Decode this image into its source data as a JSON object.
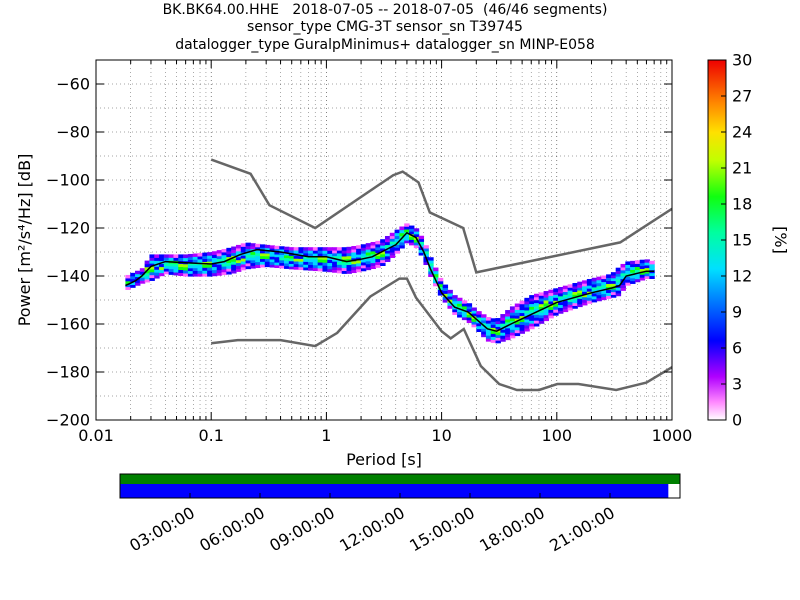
{
  "chart_data": {
    "type": "heatmap",
    "title_lines": [
      "BK.BK64.00.HHE   2018-07-05 -- 2018-07-05  (46/46 segments)",
      "sensor_type CMG-3T sensor_sn T39745",
      "datalogger_type GuralpMinimus+ datalogger_sn MINP-E058"
    ],
    "xlabel": "Period [s]",
    "ylabel": "Power [m²/s⁴/Hz] [dB]",
    "x_scale": "log",
    "xlim": [
      0.01,
      1000
    ],
    "ylim": [
      -200,
      -50
    ],
    "x_ticks": [
      {
        "value": 0.01,
        "label": "0.01"
      },
      {
        "value": 0.1,
        "label": "0.1"
      },
      {
        "value": 1,
        "label": "1"
      },
      {
        "value": 10,
        "label": "10"
      },
      {
        "value": 100,
        "label": "100"
      },
      {
        "value": 1000,
        "label": "1000"
      }
    ],
    "y_ticks": [
      {
        "value": -60,
        "label": "−60"
      },
      {
        "value": -80,
        "label": "−80"
      },
      {
        "value": -100,
        "label": "−100"
      },
      {
        "value": -120,
        "label": "−120"
      },
      {
        "value": -140,
        "label": "−140"
      },
      {
        "value": -160,
        "label": "−160"
      },
      {
        "value": -180,
        "label": "−180"
      },
      {
        "value": -200,
        "label": "−200"
      }
    ],
    "grid": true,
    "colorbar": {
      "label": "[%]",
      "range": [
        0,
        30
      ],
      "ticks": [
        {
          "value": 0,
          "label": "0"
        },
        {
          "value": 3,
          "label": "3"
        },
        {
          "value": 6,
          "label": "6"
        },
        {
          "value": 9,
          "label": "9"
        },
        {
          "value": 12,
          "label": "12"
        },
        {
          "value": 15,
          "label": "15"
        },
        {
          "value": 18,
          "label": "18"
        },
        {
          "value": 21,
          "label": "21"
        },
        {
          "value": 24,
          "label": "24"
        },
        {
          "value": 27,
          "label": "27"
        },
        {
          "value": 30,
          "label": "30"
        }
      ]
    },
    "noise_model_high": [
      [
        0.1,
        -91.5
      ],
      [
        0.22,
        -97.4
      ],
      [
        0.32,
        -110.5
      ],
      [
        0.8,
        -120
      ],
      [
        3.8,
        -98
      ],
      [
        4.6,
        -96.5
      ],
      [
        6.3,
        -101
      ],
      [
        7.9,
        -113.5
      ],
      [
        15.4,
        -120
      ],
      [
        20,
        -138.5
      ],
      [
        354.8,
        -126
      ],
      [
        1000,
        -112
      ]
    ],
    "noise_model_low": [
      [
        0.1,
        -168
      ],
      [
        0.17,
        -166.7
      ],
      [
        0.4,
        -166.7
      ],
      [
        0.8,
        -169.2
      ],
      [
        1.24,
        -163.7
      ],
      [
        2.4,
        -148.6
      ],
      [
        4.3,
        -141.1
      ],
      [
        5,
        -141.1
      ],
      [
        6,
        -149
      ],
      [
        10,
        -163
      ],
      [
        12,
        -166
      ],
      [
        15.6,
        -162.1
      ],
      [
        21.9,
        -177.5
      ],
      [
        31.6,
        -185
      ],
      [
        45,
        -187.5
      ],
      [
        70,
        -187.5
      ],
      [
        101,
        -185
      ],
      [
        154,
        -185
      ],
      [
        328,
        -187.5
      ],
      [
        600,
        -184.4
      ],
      [
        1000,
        -178
      ]
    ],
    "mode_curve": [
      [
        0.018,
        -144
      ],
      [
        0.022,
        -142
      ],
      [
        0.025,
        -140
      ],
      [
        0.03,
        -136
      ],
      [
        0.04,
        -134
      ],
      [
        0.06,
        -134.5
      ],
      [
        0.1,
        -135
      ],
      [
        0.13,
        -134
      ],
      [
        0.18,
        -131
      ],
      [
        0.25,
        -129
      ],
      [
        0.4,
        -130
      ],
      [
        0.7,
        -132
      ],
      [
        1,
        -132
      ],
      [
        1.5,
        -134
      ],
      [
        2,
        -133
      ],
      [
        2.5,
        -132
      ],
      [
        3,
        -130
      ],
      [
        4,
        -127
      ],
      [
        5,
        -122
      ],
      [
        6,
        -124
      ],
      [
        7,
        -130
      ],
      [
        8,
        -137
      ],
      [
        10,
        -147
      ],
      [
        13,
        -153
      ],
      [
        17,
        -155
      ],
      [
        20,
        -158
      ],
      [
        25,
        -162
      ],
      [
        30,
        -163
      ],
      [
        40,
        -160
      ],
      [
        60,
        -156
      ],
      [
        100,
        -151
      ],
      [
        200,
        -147
      ],
      [
        300,
        -145
      ],
      [
        350,
        -144
      ],
      [
        400,
        -140
      ],
      [
        600,
        -138
      ],
      [
        700,
        -138
      ]
    ],
    "density_band": [
      [
        0.018,
        -146,
        -140
      ],
      [
        0.025,
        -143,
        -137
      ],
      [
        0.03,
        -142,
        -131
      ],
      [
        0.04,
        -139,
        -131
      ],
      [
        0.06,
        -140,
        -131
      ],
      [
        0.1,
        -140,
        -130
      ],
      [
        0.15,
        -139,
        -128
      ],
      [
        0.2,
        -137,
        -126
      ],
      [
        0.3,
        -136,
        -127
      ],
      [
        0.5,
        -137,
        -128
      ],
      [
        1,
        -138,
        -128
      ],
      [
        1.5,
        -139,
        -128
      ],
      [
        2,
        -138,
        -127
      ],
      [
        3,
        -136,
        -125
      ],
      [
        4,
        -131,
        -121
      ],
      [
        5,
        -126,
        -118
      ],
      [
        6,
        -128,
        -120
      ],
      [
        7,
        -133,
        -125
      ],
      [
        8,
        -140,
        -132
      ],
      [
        10,
        -149,
        -142
      ],
      [
        13,
        -156,
        -148
      ],
      [
        17,
        -159,
        -151
      ],
      [
        20,
        -162,
        -154
      ],
      [
        25,
        -167,
        -157
      ],
      [
        30,
        -168,
        -158
      ],
      [
        40,
        -166,
        -153
      ],
      [
        60,
        -162,
        -148
      ],
      [
        100,
        -156,
        -145
      ],
      [
        200,
        -151,
        -141
      ],
      [
        300,
        -149,
        -139
      ],
      [
        350,
        -148,
        -136
      ],
      [
        400,
        -144,
        -134
      ],
      [
        600,
        -141,
        -133
      ],
      [
        700,
        -141,
        -134
      ]
    ],
    "gap_bar": {
      "ticks": [
        {
          "value": 3,
          "label": "03:00:00"
        },
        {
          "value": 6,
          "label": "06:00:00"
        },
        {
          "value": 9,
          "label": "09:00:00"
        },
        {
          "value": 12,
          "label": "12:00:00"
        },
        {
          "value": 15,
          "label": "15:00:00"
        },
        {
          "value": 18,
          "label": "18:00:00"
        },
        {
          "value": 21,
          "label": "21:00:00"
        }
      ],
      "range_hours": [
        0,
        24
      ],
      "data_end_hours": 23.5,
      "colors": {
        "available": "#008000",
        "used": "#0000ff"
      }
    }
  }
}
